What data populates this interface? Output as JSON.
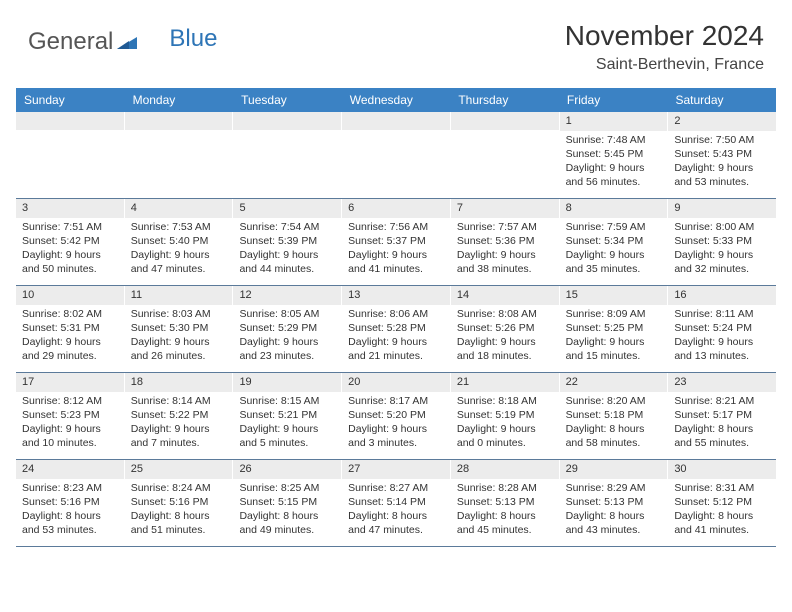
{
  "brand": {
    "part1": "General",
    "part2": "Blue"
  },
  "title": "November 2024",
  "location": "Saint-Berthevin, France",
  "colors": {
    "header_bg": "#3b82c4",
    "header_text": "#ffffff",
    "daynum_bg": "#ececec",
    "row_border": "#5b7a9a",
    "text": "#333333",
    "logo_blue": "#2e75b6"
  },
  "day_names": [
    "Sunday",
    "Monday",
    "Tuesday",
    "Wednesday",
    "Thursday",
    "Friday",
    "Saturday"
  ],
  "weeks": [
    [
      {
        "n": "",
        "sr": "",
        "ss": "",
        "dl": ""
      },
      {
        "n": "",
        "sr": "",
        "ss": "",
        "dl": ""
      },
      {
        "n": "",
        "sr": "",
        "ss": "",
        "dl": ""
      },
      {
        "n": "",
        "sr": "",
        "ss": "",
        "dl": ""
      },
      {
        "n": "",
        "sr": "",
        "ss": "",
        "dl": ""
      },
      {
        "n": "1",
        "sr": "Sunrise: 7:48 AM",
        "ss": "Sunset: 5:45 PM",
        "dl": "Daylight: 9 hours and 56 minutes."
      },
      {
        "n": "2",
        "sr": "Sunrise: 7:50 AM",
        "ss": "Sunset: 5:43 PM",
        "dl": "Daylight: 9 hours and 53 minutes."
      }
    ],
    [
      {
        "n": "3",
        "sr": "Sunrise: 7:51 AM",
        "ss": "Sunset: 5:42 PM",
        "dl": "Daylight: 9 hours and 50 minutes."
      },
      {
        "n": "4",
        "sr": "Sunrise: 7:53 AM",
        "ss": "Sunset: 5:40 PM",
        "dl": "Daylight: 9 hours and 47 minutes."
      },
      {
        "n": "5",
        "sr": "Sunrise: 7:54 AM",
        "ss": "Sunset: 5:39 PM",
        "dl": "Daylight: 9 hours and 44 minutes."
      },
      {
        "n": "6",
        "sr": "Sunrise: 7:56 AM",
        "ss": "Sunset: 5:37 PM",
        "dl": "Daylight: 9 hours and 41 minutes."
      },
      {
        "n": "7",
        "sr": "Sunrise: 7:57 AM",
        "ss": "Sunset: 5:36 PM",
        "dl": "Daylight: 9 hours and 38 minutes."
      },
      {
        "n": "8",
        "sr": "Sunrise: 7:59 AM",
        "ss": "Sunset: 5:34 PM",
        "dl": "Daylight: 9 hours and 35 minutes."
      },
      {
        "n": "9",
        "sr": "Sunrise: 8:00 AM",
        "ss": "Sunset: 5:33 PM",
        "dl": "Daylight: 9 hours and 32 minutes."
      }
    ],
    [
      {
        "n": "10",
        "sr": "Sunrise: 8:02 AM",
        "ss": "Sunset: 5:31 PM",
        "dl": "Daylight: 9 hours and 29 minutes."
      },
      {
        "n": "11",
        "sr": "Sunrise: 8:03 AM",
        "ss": "Sunset: 5:30 PM",
        "dl": "Daylight: 9 hours and 26 minutes."
      },
      {
        "n": "12",
        "sr": "Sunrise: 8:05 AM",
        "ss": "Sunset: 5:29 PM",
        "dl": "Daylight: 9 hours and 23 minutes."
      },
      {
        "n": "13",
        "sr": "Sunrise: 8:06 AM",
        "ss": "Sunset: 5:28 PM",
        "dl": "Daylight: 9 hours and 21 minutes."
      },
      {
        "n": "14",
        "sr": "Sunrise: 8:08 AM",
        "ss": "Sunset: 5:26 PM",
        "dl": "Daylight: 9 hours and 18 minutes."
      },
      {
        "n": "15",
        "sr": "Sunrise: 8:09 AM",
        "ss": "Sunset: 5:25 PM",
        "dl": "Daylight: 9 hours and 15 minutes."
      },
      {
        "n": "16",
        "sr": "Sunrise: 8:11 AM",
        "ss": "Sunset: 5:24 PM",
        "dl": "Daylight: 9 hours and 13 minutes."
      }
    ],
    [
      {
        "n": "17",
        "sr": "Sunrise: 8:12 AM",
        "ss": "Sunset: 5:23 PM",
        "dl": "Daylight: 9 hours and 10 minutes."
      },
      {
        "n": "18",
        "sr": "Sunrise: 8:14 AM",
        "ss": "Sunset: 5:22 PM",
        "dl": "Daylight: 9 hours and 7 minutes."
      },
      {
        "n": "19",
        "sr": "Sunrise: 8:15 AM",
        "ss": "Sunset: 5:21 PM",
        "dl": "Daylight: 9 hours and 5 minutes."
      },
      {
        "n": "20",
        "sr": "Sunrise: 8:17 AM",
        "ss": "Sunset: 5:20 PM",
        "dl": "Daylight: 9 hours and 3 minutes."
      },
      {
        "n": "21",
        "sr": "Sunrise: 8:18 AM",
        "ss": "Sunset: 5:19 PM",
        "dl": "Daylight: 9 hours and 0 minutes."
      },
      {
        "n": "22",
        "sr": "Sunrise: 8:20 AM",
        "ss": "Sunset: 5:18 PM",
        "dl": "Daylight: 8 hours and 58 minutes."
      },
      {
        "n": "23",
        "sr": "Sunrise: 8:21 AM",
        "ss": "Sunset: 5:17 PM",
        "dl": "Daylight: 8 hours and 55 minutes."
      }
    ],
    [
      {
        "n": "24",
        "sr": "Sunrise: 8:23 AM",
        "ss": "Sunset: 5:16 PM",
        "dl": "Daylight: 8 hours and 53 minutes."
      },
      {
        "n": "25",
        "sr": "Sunrise: 8:24 AM",
        "ss": "Sunset: 5:16 PM",
        "dl": "Daylight: 8 hours and 51 minutes."
      },
      {
        "n": "26",
        "sr": "Sunrise: 8:25 AM",
        "ss": "Sunset: 5:15 PM",
        "dl": "Daylight: 8 hours and 49 minutes."
      },
      {
        "n": "27",
        "sr": "Sunrise: 8:27 AM",
        "ss": "Sunset: 5:14 PM",
        "dl": "Daylight: 8 hours and 47 minutes."
      },
      {
        "n": "28",
        "sr": "Sunrise: 8:28 AM",
        "ss": "Sunset: 5:13 PM",
        "dl": "Daylight: 8 hours and 45 minutes."
      },
      {
        "n": "29",
        "sr": "Sunrise: 8:29 AM",
        "ss": "Sunset: 5:13 PM",
        "dl": "Daylight: 8 hours and 43 minutes."
      },
      {
        "n": "30",
        "sr": "Sunrise: 8:31 AM",
        "ss": "Sunset: 5:12 PM",
        "dl": "Daylight: 8 hours and 41 minutes."
      }
    ]
  ]
}
